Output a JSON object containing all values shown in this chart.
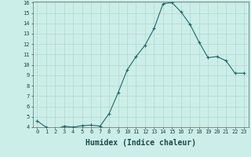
{
  "xlabel": "Humidex (Indice chaleur)",
  "x": [
    0,
    1,
    2,
    3,
    4,
    5,
    6,
    7,
    8,
    9,
    10,
    11,
    12,
    13,
    14,
    15,
    16,
    17,
    18,
    19,
    20,
    21,
    22,
    23
  ],
  "y": [
    4.6,
    4.0,
    3.8,
    4.1,
    4.0,
    4.15,
    4.2,
    4.1,
    5.3,
    7.3,
    9.5,
    10.8,
    11.9,
    13.5,
    15.9,
    16.0,
    15.1,
    13.9,
    12.2,
    10.7,
    10.8,
    10.4,
    9.2,
    9.2
  ],
  "line_color": "#1a6b6b",
  "marker": "+",
  "marker_size": 3,
  "bg_color": "#cceee8",
  "grid_color": "#b0d8cc",
  "ylim": [
    4,
    16
  ],
  "xlim": [
    -0.5,
    23.5
  ],
  "yticks": [
    4,
    5,
    6,
    7,
    8,
    9,
    10,
    11,
    12,
    13,
    14,
    15,
    16
  ],
  "xticks": [
    0,
    1,
    2,
    3,
    4,
    5,
    6,
    7,
    8,
    9,
    10,
    11,
    12,
    13,
    14,
    15,
    16,
    17,
    18,
    19,
    20,
    21,
    22,
    23
  ],
  "tick_fontsize": 5,
  "xlabel_fontsize": 7
}
